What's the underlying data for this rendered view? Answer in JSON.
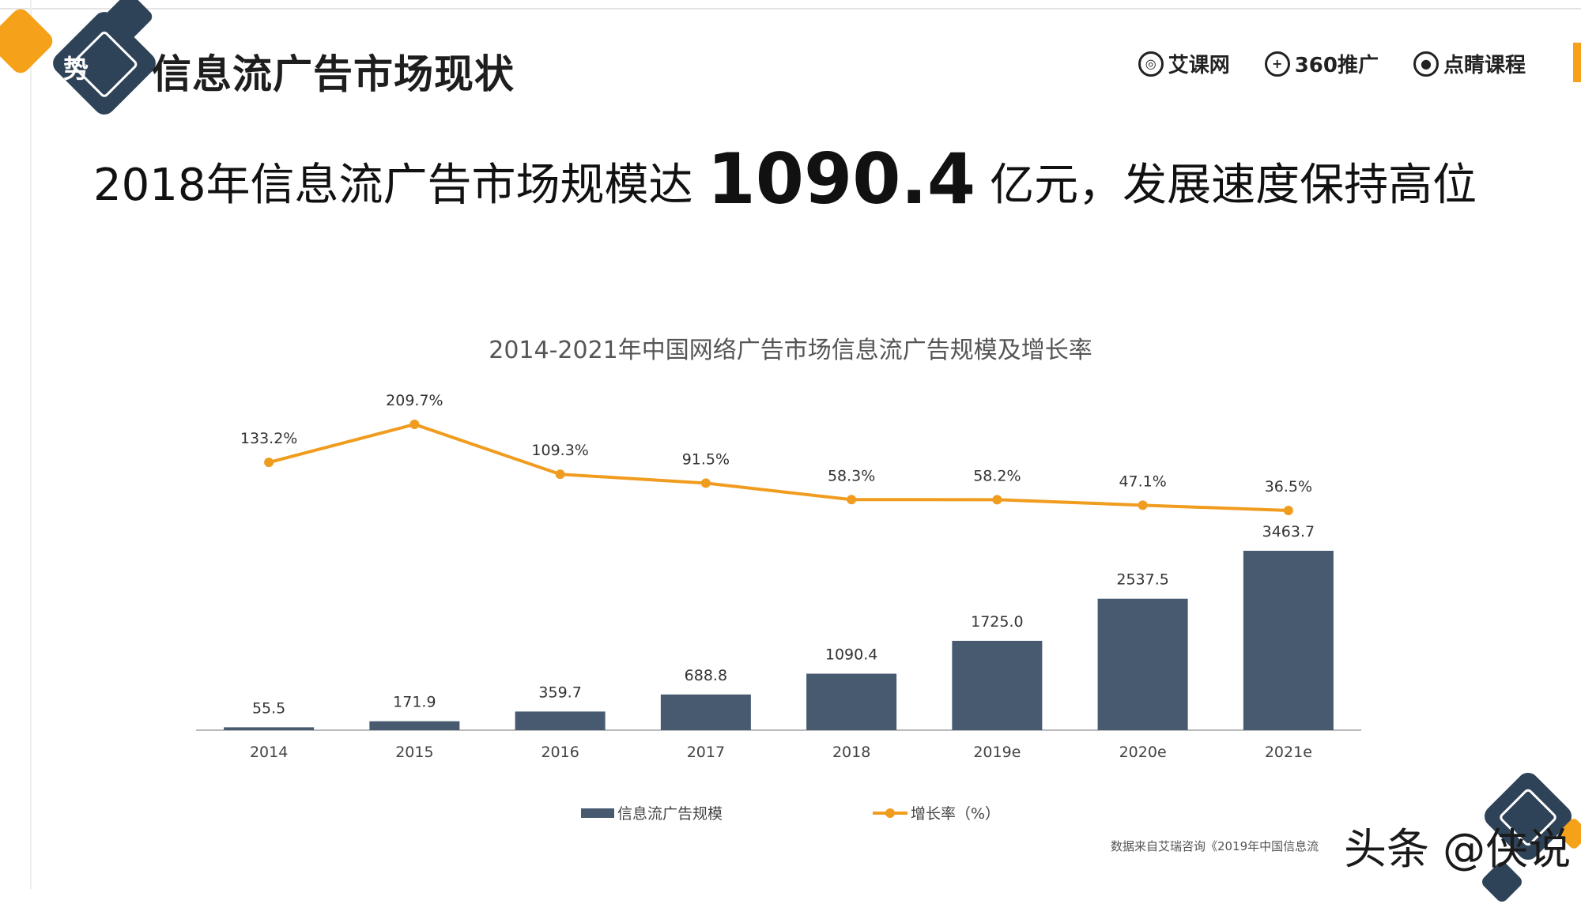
{
  "slide": {
    "badge_char": "势",
    "title": "信息流广告市场现状",
    "logos": [
      {
        "name": "艾课网",
        "icon": "target-icon"
      },
      {
        "name": "360推广",
        "icon": "plus-circle-icon"
      },
      {
        "name": "点睛课程",
        "icon": "eye-icon"
      }
    ],
    "headline_pre": "2018年信息流广告市场规模达",
    "headline_num": "1090.4",
    "headline_post": "亿元，发展速度保持高位",
    "source_text": "数据来自艾瑞咨询《2019年中国信息流",
    "watermark": "头条 @侠说"
  },
  "colors": {
    "bar": "#475a70",
    "line": "#f09c1f",
    "accent_orange": "#f5a11a",
    "deco_navy": "#2f4358"
  },
  "chart_data": {
    "type": "bar",
    "title": "2014-2021年中国网络广告市场信息流广告规模及增长率",
    "categories": [
      "2014",
      "2015",
      "2016",
      "2017",
      "2018",
      "2019e",
      "2020e",
      "2021e"
    ],
    "series": [
      {
        "name": "信息流广告规模",
        "type": "bar",
        "values": [
          55.5,
          171.9,
          359.7,
          688.8,
          1090.4,
          1725.0,
          2537.5,
          3463.7
        ],
        "labels": [
          "55.5",
          "171.9",
          "359.7",
          "688.8",
          "1090.4",
          "1725.0",
          "2537.5",
          "3463.7"
        ]
      },
      {
        "name": "增长率（%）",
        "type": "line",
        "values": [
          133.2,
          209.7,
          109.3,
          91.5,
          58.3,
          58.2,
          47.1,
          36.5
        ],
        "labels": [
          "133.2%",
          "209.7%",
          "109.3%",
          "91.5%",
          "58.3%",
          "58.2%",
          "47.1%",
          "36.5%"
        ]
      }
    ],
    "bar_ylim": [
      0,
      3463.7
    ],
    "line_ylim": [
      36.5,
      209.7
    ],
    "legend_position": "bottom",
    "grid": false
  }
}
